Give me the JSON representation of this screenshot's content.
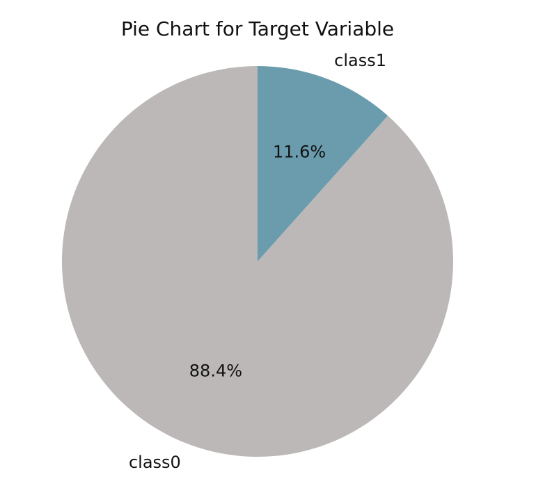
{
  "chart_data": {
    "type": "pie",
    "title": "Pie Chart for Target Variable",
    "labels": [
      "class0",
      "class1"
    ],
    "values": [
      88.4,
      11.6
    ],
    "percent_labels": [
      "88.4%",
      "11.6%"
    ],
    "colors": [
      "#bcb8b8",
      "#6a9cad"
    ],
    "start": "top",
    "direction": "clockwise-from-top-for-class1"
  }
}
